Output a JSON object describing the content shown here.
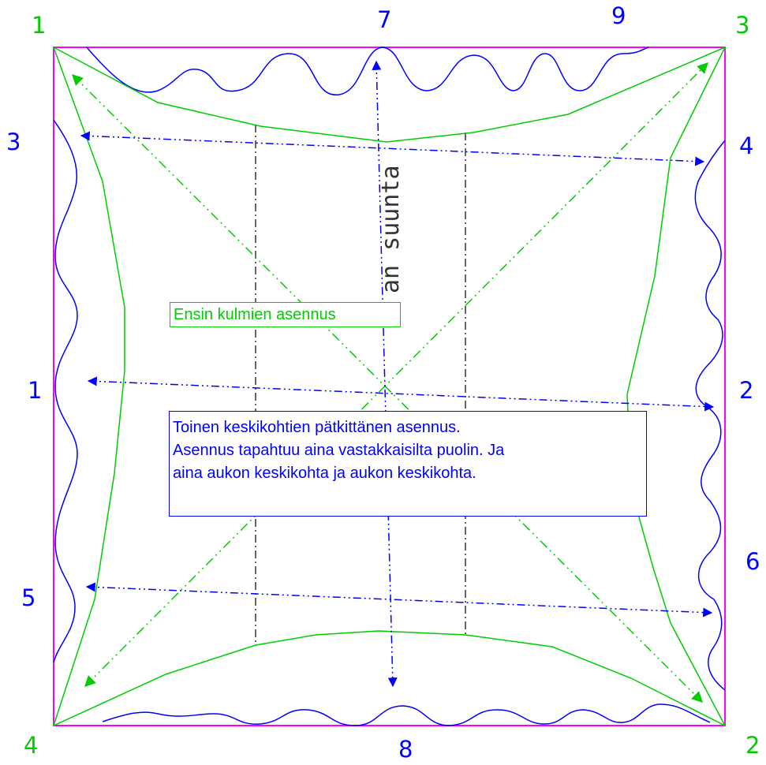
{
  "colors": {
    "frame": "#ff00ff",
    "green": "#00cc00",
    "blue": "#0000ff",
    "seam": "#333333",
    "green_label": "#00cc00",
    "blue_label": "#0000ff"
  },
  "corner_labels": {
    "top_left": "1",
    "top_right": "3",
    "bottom_left": "4",
    "bottom_right": "2"
  },
  "side_labels": {
    "left_upper": "3",
    "left_middle": "1",
    "left_lower": "5",
    "right_upper": "4",
    "right_middle": "2",
    "right_lower": "6",
    "top_middle": "7",
    "top_right": "9",
    "bottom_middle": "8"
  },
  "annotations": {
    "green_box": "Ensin kulmien asennus",
    "blue_box": [
      "Toinen keskikohtien pätkittänen asennus.",
      "Asennus tapahtuu aina vastakkaisilta puolin. Ja",
      "aina aukon keskikohta ja aukon keskikohta."
    ],
    "vertical_text": "an suunta"
  }
}
